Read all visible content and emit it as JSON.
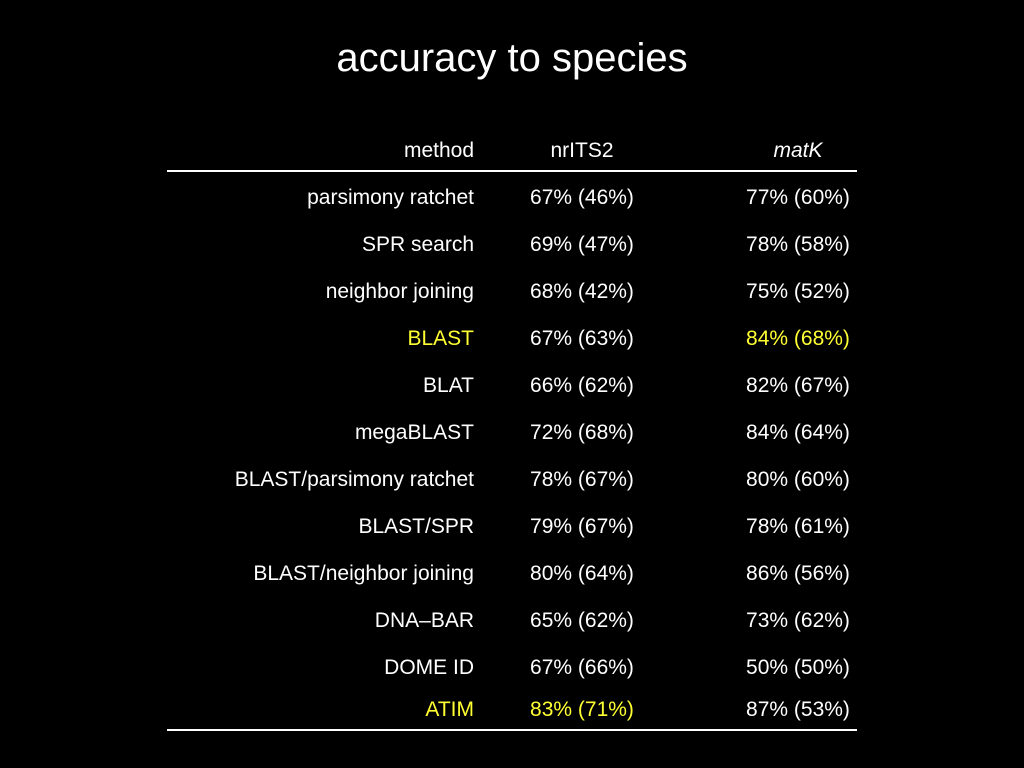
{
  "title": "accuracy to species",
  "colors": {
    "background": "#000000",
    "text": "#ffffff",
    "highlight": "#ffff33"
  },
  "table": {
    "headers": {
      "method": "method",
      "nrits2": "nrITS2",
      "matk": "matK"
    },
    "rows": [
      {
        "method": "parsimony ratchet",
        "nrits2": "67% (46%)",
        "matk": "77% (60%)",
        "hl_method": false,
        "hl_nrits2": false,
        "hl_matk": false
      },
      {
        "method": "SPR search",
        "nrits2": "69% (47%)",
        "matk": "78% (58%)",
        "hl_method": false,
        "hl_nrits2": false,
        "hl_matk": false
      },
      {
        "method": "neighbor joining",
        "nrits2": "68% (42%)",
        "matk": "75% (52%)",
        "hl_method": false,
        "hl_nrits2": false,
        "hl_matk": false
      },
      {
        "method": "BLAST",
        "nrits2": "67% (63%)",
        "matk": "84% (68%)",
        "hl_method": true,
        "hl_nrits2": false,
        "hl_matk": true
      },
      {
        "method": "BLAT",
        "nrits2": "66% (62%)",
        "matk": "82% (67%)",
        "hl_method": false,
        "hl_nrits2": false,
        "hl_matk": false
      },
      {
        "method": "megaBLAST",
        "nrits2": "72% (68%)",
        "matk": "84% (64%)",
        "hl_method": false,
        "hl_nrits2": false,
        "hl_matk": false
      },
      {
        "method": "BLAST/parsimony ratchet",
        "nrits2": "78% (67%)",
        "matk": "80% (60%)",
        "hl_method": false,
        "hl_nrits2": false,
        "hl_matk": false
      },
      {
        "method": "BLAST/SPR",
        "nrits2": "79% (67%)",
        "matk": "78% (61%)",
        "hl_method": false,
        "hl_nrits2": false,
        "hl_matk": false
      },
      {
        "method": "BLAST/neighbor joining",
        "nrits2": "80% (64%)",
        "matk": "86% (56%)",
        "hl_method": false,
        "hl_nrits2": false,
        "hl_matk": false
      },
      {
        "method": "DNA–BAR",
        "nrits2": "65% (62%)",
        "matk": "73% (62%)",
        "hl_method": false,
        "hl_nrits2": false,
        "hl_matk": false
      },
      {
        "method": "DOME ID",
        "nrits2": "67% (66%)",
        "matk": "50% (50%)",
        "hl_method": false,
        "hl_nrits2": false,
        "hl_matk": false
      },
      {
        "method": "ATIM",
        "nrits2": "83% (71%)",
        "matk": "87% (53%)",
        "hl_method": true,
        "hl_nrits2": true,
        "hl_matk": false
      }
    ]
  }
}
